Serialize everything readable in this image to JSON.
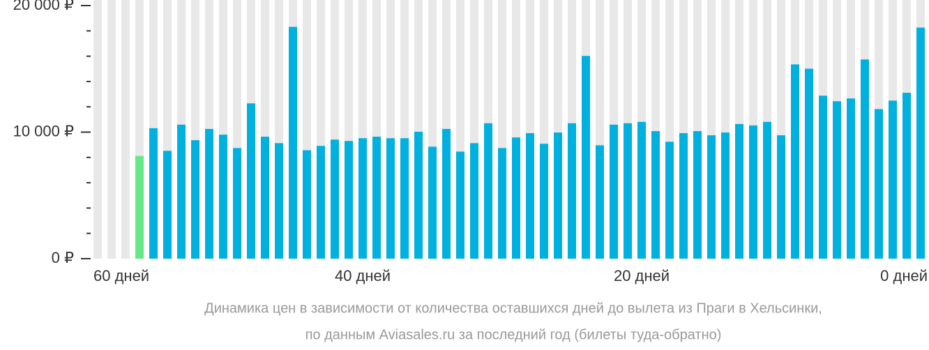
{
  "chart_data": {
    "type": "bar",
    "categories": [
      "60 дней",
      null,
      null,
      null,
      null,
      null,
      null,
      null,
      null,
      null,
      null,
      null,
      null,
      null,
      null,
      null,
      null,
      null,
      null,
      "40 дней",
      null,
      null,
      null,
      null,
      null,
      null,
      null,
      null,
      null,
      null,
      null,
      null,
      null,
      null,
      null,
      null,
      null,
      null,
      null,
      "20 дней",
      null,
      null,
      null,
      null,
      null,
      null,
      null,
      null,
      null,
      null,
      null,
      null,
      null,
      null,
      null,
      null,
      null,
      null,
      null,
      "0 дней"
    ],
    "values": [
      null,
      null,
      null,
      8120,
      10310,
      8520,
      10590,
      9360,
      10250,
      9800,
      8740,
      12270,
      9640,
      9130,
      18320,
      8570,
      8910,
      9410,
      9300,
      9520,
      9640,
      9520,
      9520,
      10030,
      8850,
      10250,
      8460,
      9130,
      10700,
      8740,
      9580,
      9920,
      9080,
      9970,
      10700,
      16020,
      8960,
      10590,
      10700,
      10810,
      10080,
      9240,
      9920,
      10080,
      9750,
      9970,
      10640,
      10530,
      10810,
      9750,
      15350,
      15010,
      12880,
      12440,
      12660,
      15740,
      11820,
      12490,
      13110,
      18260
    ],
    "color": "#00b0de",
    "min_color": "#64e986",
    "background_color": "#e8e8e8",
    "ylim": [
      0,
      20000
    ],
    "yticks": [
      {
        "value": 0,
        "label": "0 ₽"
      },
      {
        "value": 10000,
        "label": "10 000 ₽"
      },
      {
        "value": 20000,
        "label": "20 000 ₽"
      }
    ],
    "yticks_minor": [
      2000,
      4000,
      6000,
      8000,
      12000,
      14000,
      16000,
      18000
    ],
    "caption": [
      "Динамика цен в зависимости от количества оставшихся дней до вылета из Праги в Хельсинки,",
      "по данным Aviasales.ru за последний год (билеты туда-обратно)"
    ]
  }
}
